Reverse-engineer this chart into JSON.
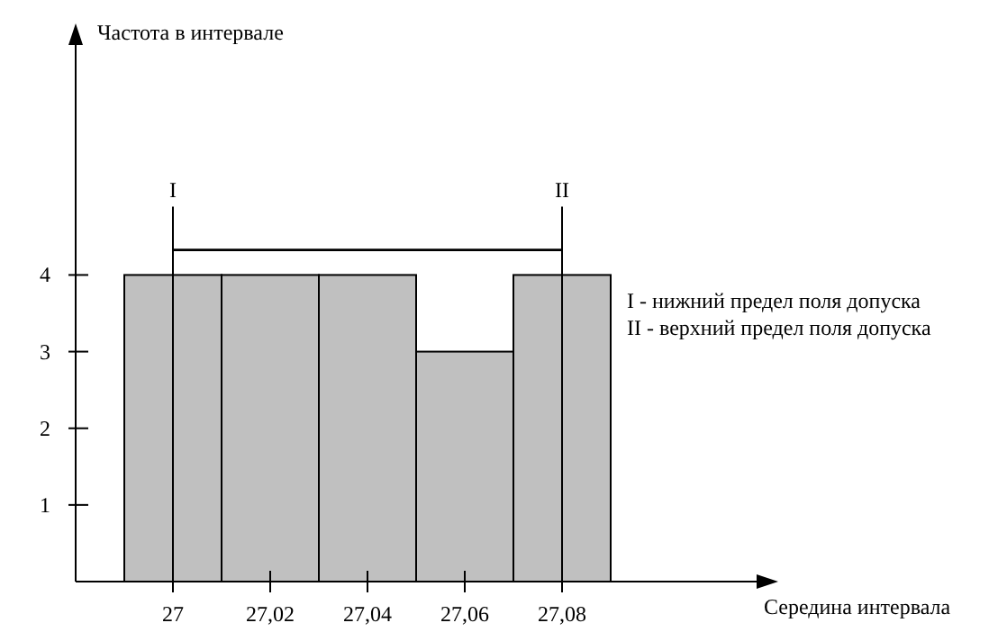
{
  "chart_data": {
    "type": "histogram",
    "xlabel": "Середина интервала",
    "ylabel": "Частота в интервале",
    "bins": [
      26.99,
      27.01,
      27.03,
      27.05,
      27.07,
      27.09
    ],
    "values": [
      4,
      4,
      4,
      3,
      4
    ],
    "color": "#c0c0c0",
    "xlim": [
      26.98,
      27.12
    ],
    "ylim": [
      0,
      7
    ],
    "xticks": [
      27,
      {
        "value": 27.02,
        "label": "27,02"
      },
      {
        "value": 27.04,
        "label": "27,04"
      },
      {
        "value": 27.06,
        "label": "27,06"
      },
      {
        "value": 27.08,
        "label": "27,08"
      }
    ],
    "yticks": [
      1,
      2,
      3,
      4
    ],
    "ref_lines": [
      {
        "axis": "x",
        "value": 27,
        "label": "I"
      },
      {
        "axis": "x",
        "value": 27.08,
        "label": "II"
      }
    ],
    "annotations": [
      "I - нижний предел поля допуска",
      "II - верхний предел поля допуска"
    ],
    "grid": false
  }
}
